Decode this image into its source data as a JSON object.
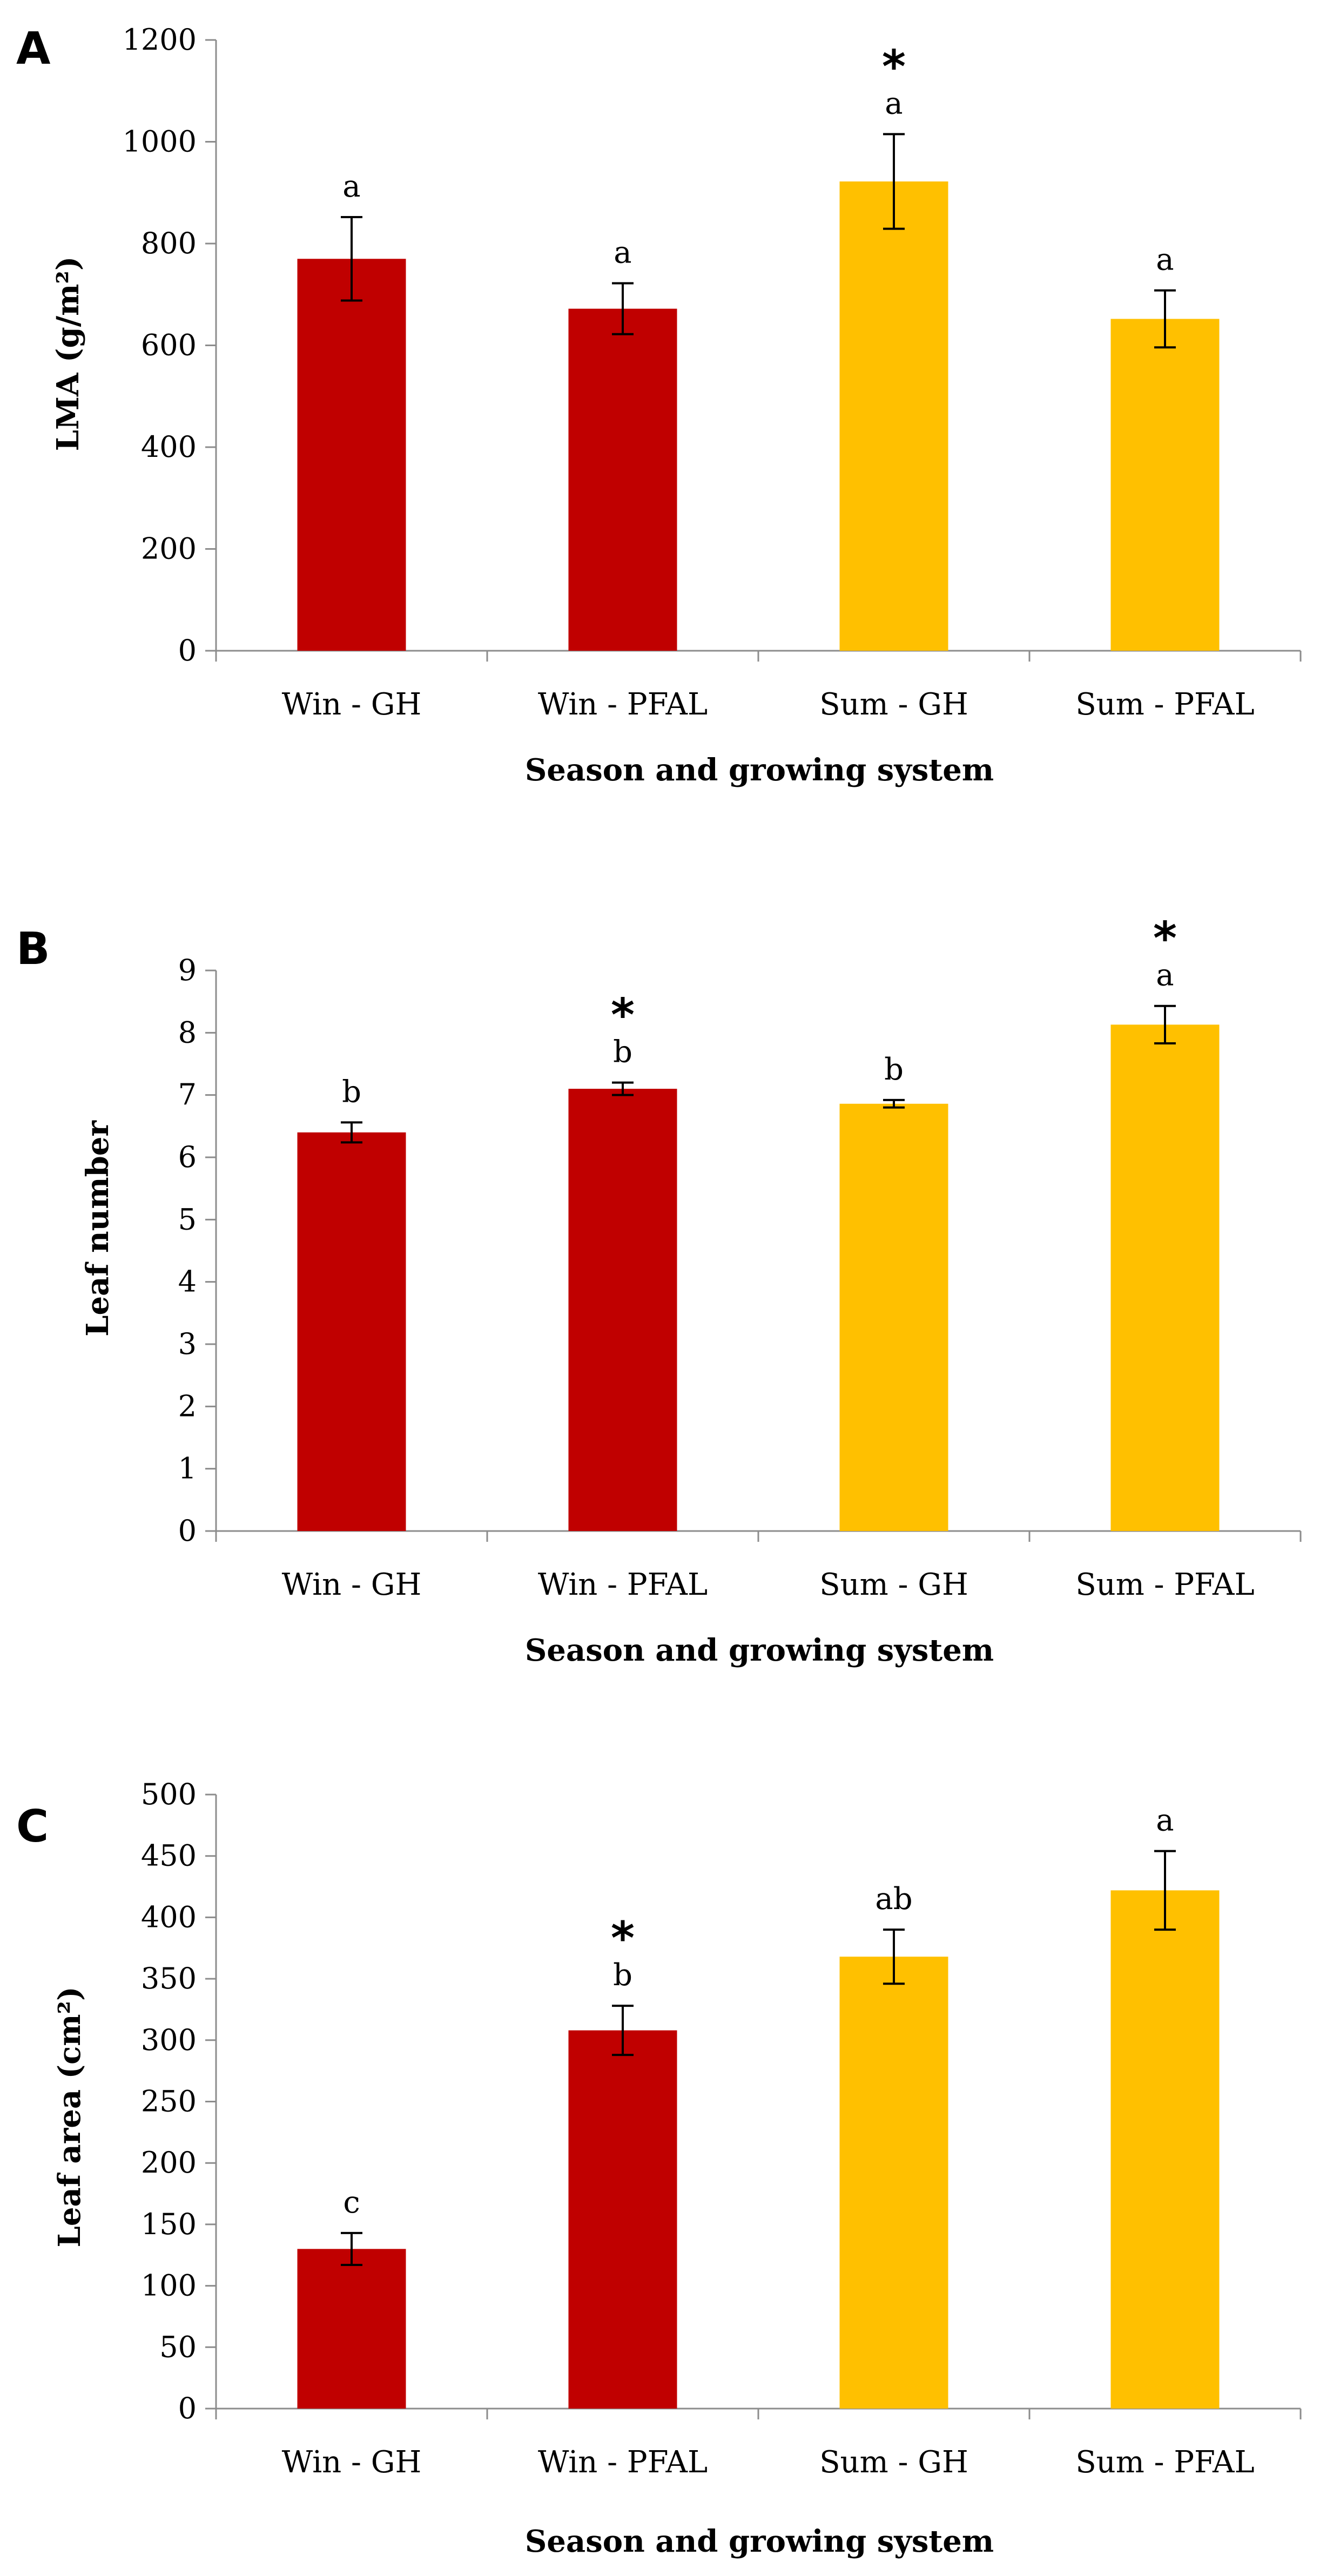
{
  "colors": {
    "winter": "#C00000",
    "summer": "#FFC000",
    "axis": "#8c8c8c",
    "text": "#000000",
    "errorbar": "#000000"
  },
  "chart_data": [
    {
      "type": "bar",
      "panel": "A",
      "title": "",
      "xlabel": "Season and growing system",
      "ylabel": "LMA (g/m²)",
      "categories": [
        "Win - GH",
        "Win - PFAL",
        "Sum - GH",
        "Sum - PFAL"
      ],
      "values": [
        770,
        672,
        922,
        652
      ],
      "errors": [
        82,
        50,
        93,
        56
      ],
      "letters": [
        "a",
        "a",
        "a",
        "a"
      ],
      "significance": [
        "",
        "",
        "*",
        ""
      ],
      "ylim": [
        0,
        1200
      ],
      "yticks": [
        0,
        200,
        400,
        600,
        800,
        1000,
        1200
      ],
      "grid": false
    },
    {
      "type": "bar",
      "panel": "B",
      "title": "",
      "xlabel": "Season and growing system",
      "ylabel": "Leaf number",
      "categories": [
        "Win - GH",
        "Win - PFAL",
        "Sum - GH",
        "Sum - PFAL"
      ],
      "values": [
        6.4,
        7.1,
        6.86,
        8.13
      ],
      "errors": [
        0.16,
        0.1,
        0.06,
        0.3
      ],
      "letters": [
        "b",
        "b",
        "b",
        "a"
      ],
      "significance": [
        "",
        "*",
        "",
        "*"
      ],
      "ylim": [
        0,
        9
      ],
      "yticks": [
        0,
        1,
        2,
        3,
        4,
        5,
        6,
        7,
        8,
        9
      ],
      "grid": false
    },
    {
      "type": "bar",
      "panel": "C",
      "title": "",
      "xlabel": "Season and growing system",
      "ylabel": "Leaf area (cm²)",
      "categories": [
        "Win - GH",
        "Win - PFAL",
        "Sum - GH",
        "Sum - PFAL"
      ],
      "values": [
        130,
        308,
        368,
        422
      ],
      "errors": [
        13,
        20,
        22,
        32
      ],
      "letters": [
        "c",
        "b",
        "ab",
        "a"
      ],
      "significance": [
        "",
        "*",
        "",
        ""
      ],
      "ylim": [
        0,
        500
      ],
      "yticks": [
        0,
        50,
        100,
        150,
        200,
        250,
        300,
        350,
        400,
        450,
        500
      ],
      "grid": false
    }
  ]
}
